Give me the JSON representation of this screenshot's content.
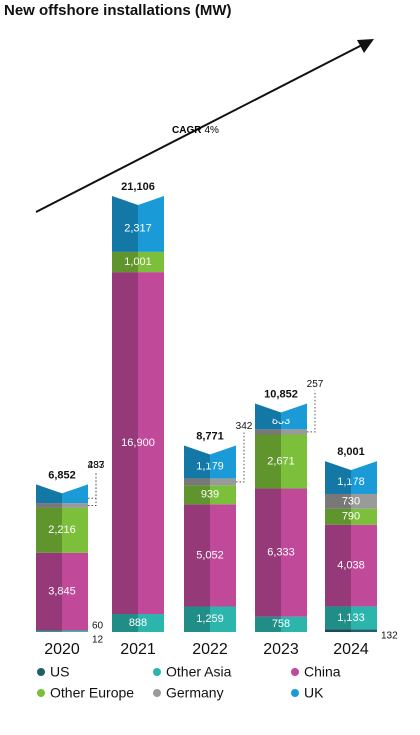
{
  "chart_data": {
    "type": "stacked_bar",
    "title": "New offshore installations (MW)",
    "annotation": {
      "label": "CAGR",
      "value": "4%"
    },
    "categories": [
      "2020",
      "2021",
      "2022",
      "2023",
      "2024"
    ],
    "series": [
      {
        "name": "US",
        "color": "#1f5f6b",
        "values": [
          12,
          0,
          0,
          0,
          132
        ],
        "value_labels": [
          "12",
          null,
          null,
          null,
          "132"
        ]
      },
      {
        "name": "Other Asia",
        "color": "#2bb5ad",
        "values": [
          60,
          888,
          1259,
          758,
          1133
        ],
        "value_labels": [
          "60",
          "888",
          "1,259",
          "758",
          "1,133"
        ]
      },
      {
        "name": "China",
        "color": "#c0499a",
        "values": [
          3845,
          16900,
          5052,
          6333,
          4038
        ],
        "value_labels": [
          "3,845",
          "16,900",
          "5,052",
          "6,333",
          "4,038"
        ]
      },
      {
        "name": "Other Europe",
        "color": "#7bbf3a",
        "values": [
          2216,
          1001,
          939,
          2671,
          790
        ],
        "value_labels": [
          "2,216",
          "1,001",
          "939",
          "2,671",
          "790"
        ]
      },
      {
        "name": "Germany",
        "color": "#9a9a9a",
        "values": [
          237,
          0,
          342,
          257,
          730
        ],
        "value_labels": [
          "237",
          null,
          "342",
          "257",
          "730"
        ]
      },
      {
        "name": "UK",
        "color": "#1a9ad6",
        "values": [
          483,
          2317,
          1179,
          833,
          1178
        ],
        "value_labels": [
          "483",
          "2,317",
          "1,179",
          "833",
          "1,178"
        ]
      }
    ],
    "totals": [
      6852,
      21106,
      8771,
      10852,
      8001
    ],
    "total_labels": [
      "6,852",
      "21,106",
      "8,771",
      "10,852",
      "8,001"
    ]
  }
}
